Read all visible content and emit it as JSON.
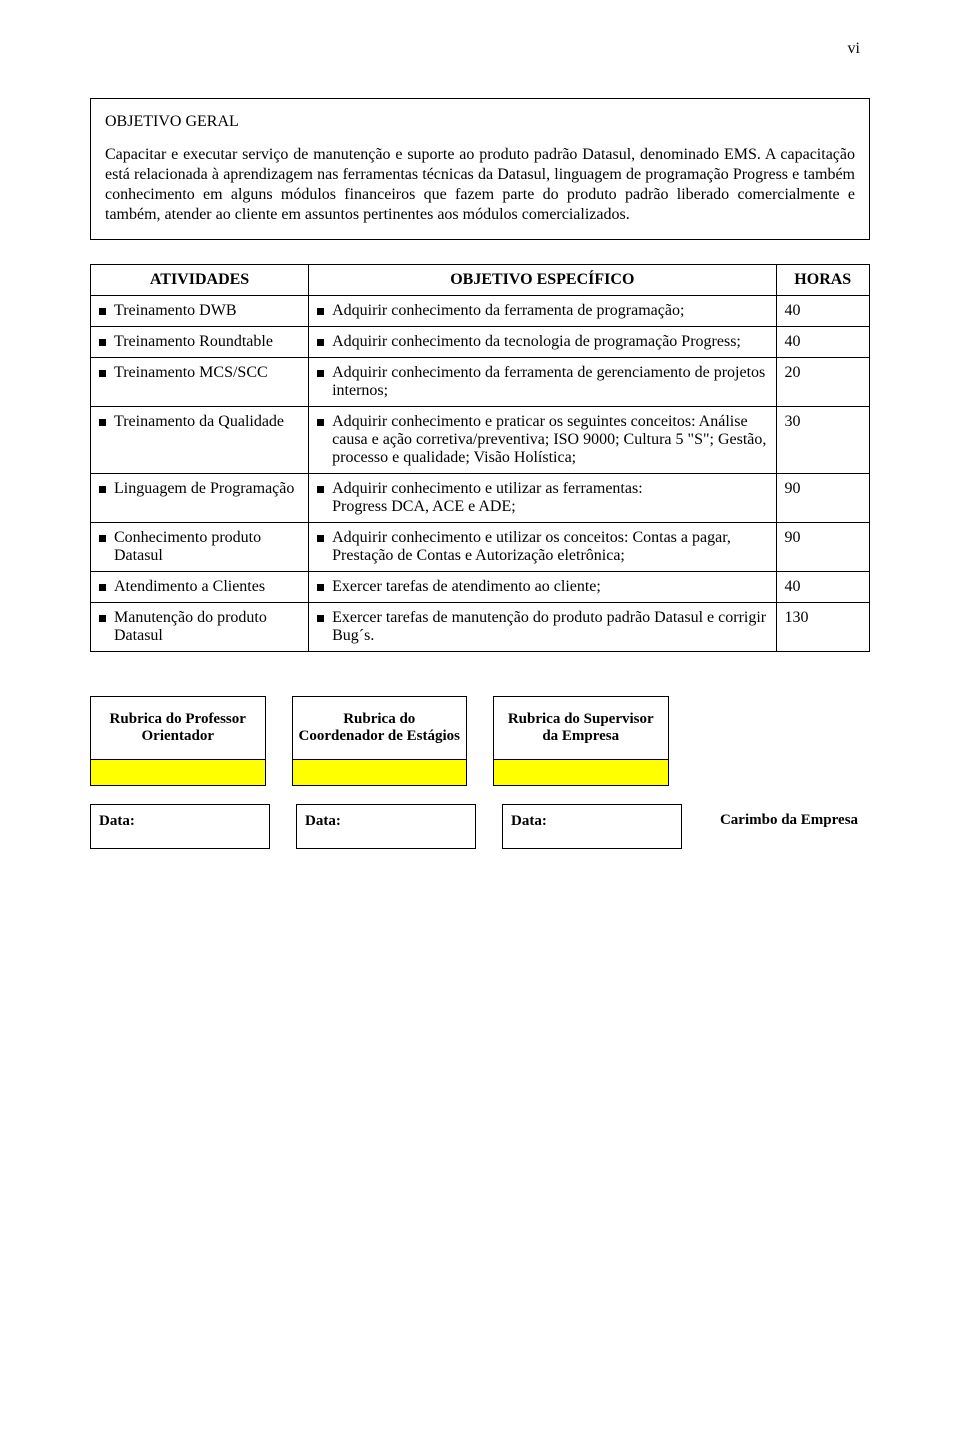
{
  "page_number": "vi",
  "objective_box": {
    "title": "OBJETIVO GERAL",
    "body": "Capacitar e executar serviço de manutenção e suporte ao produto padrão Datasul, denominado EMS. A capacitação está relacionada à aprendizagem nas ferramentas técnicas da Datasul, linguagem de programação Progress e também conhecimento em alguns módulos financeiros que fazem parte do produto padrão liberado comercialmente e também, atender ao cliente em assuntos pertinentes aos módulos comercializados."
  },
  "table": {
    "headers": {
      "activities": "ATIVIDADES",
      "objective": "OBJETIVO ESPECÍFICO",
      "hours": "HORAS"
    },
    "rows": [
      {
        "activity": "Treinamento DWB",
        "objective": "Adquirir conhecimento da ferramenta de programação;",
        "hours": "40"
      },
      {
        "activity": "Treinamento Roundtable",
        "objective": "Adquirir conhecimento da tecnologia de programação Progress;",
        "hours": "40"
      },
      {
        "activity": "Treinamento MCS/SCC",
        "objective": "Adquirir conhecimento da ferramenta de gerenciamento de projetos internos;",
        "hours": "20"
      },
      {
        "activity": "Treinamento da Qualidade",
        "objective": "Adquirir conhecimento e praticar os seguintes conceitos: Análise causa e ação corretiva/preventiva; ISO 9000; Cultura 5 \"S\"; Gestão, processo e qualidade; Visão Holística;",
        "hours": "30"
      },
      {
        "activity": "Linguagem de Programação",
        "objective": "Adquirir conhecimento e utilizar as ferramentas:\nProgress DCA, ACE e ADE;",
        "hours": "90"
      },
      {
        "activity": "Conhecimento produto Datasul",
        "objective": "Adquirir conhecimento e utilizar os conceitos: Contas a pagar, Prestação de Contas e Autorização eletrônica;",
        "hours": "90"
      },
      {
        "activity": "Atendimento a Clientes",
        "objective": "Exercer tarefas de atendimento ao cliente;",
        "hours": "40"
      },
      {
        "activity": "Manutenção do produto Datasul",
        "objective": "Exercer tarefas de manutenção do produto padrão Datasul e corrigir Bug´s.",
        "hours": "130"
      }
    ]
  },
  "signatures": {
    "col1": "Rubrica do Professor Orientador",
    "col2": "Rubrica do Coordenador de Estágios",
    "col3": "Rubrica do Supervisor da Empresa",
    "data_label": "Data:",
    "stamp": "Carimbo da Empresa",
    "highlight_color": "#ffff00"
  },
  "colors": {
    "text": "#000000",
    "background": "#ffffff",
    "border": "#000000"
  },
  "fonts": {
    "body_family": "Times New Roman",
    "body_size_pt": 12
  }
}
